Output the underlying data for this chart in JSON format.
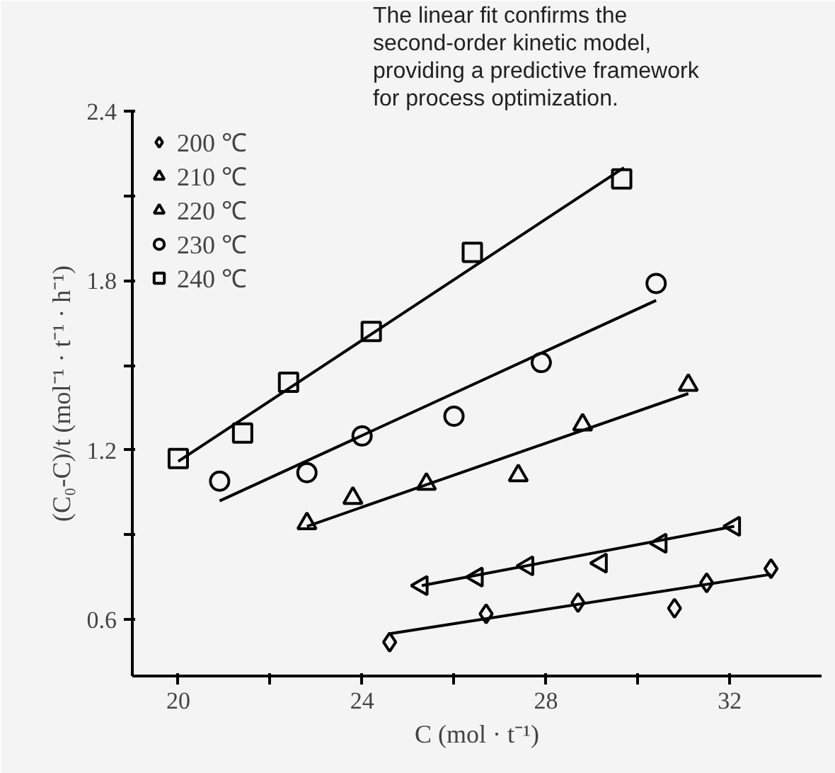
{
  "chart_data": {
    "type": "scatter",
    "xlabel": "C (mol · t⁻¹)",
    "ylabel": "(C₀-C)/t (mol⁻¹ · t⁻¹ · h⁻¹)",
    "xlim": [
      19,
      34
    ],
    "ylim": [
      0.4,
      2.4
    ],
    "xticks": [
      20,
      {
        "value": 22,
        "label": null
      },
      24,
      {
        "value": 26,
        "label": null
      },
      28,
      {
        "value": 30,
        "label": null
      },
      32
    ],
    "yticks": [
      0.6,
      {
        "value": 0.9,
        "label": null
      },
      1.2,
      {
        "value": 1.5,
        "label": null
      },
      1.8,
      {
        "value": 2.1,
        "label": null
      },
      2.4
    ],
    "grid": false,
    "legend": "top left",
    "annotations": [
      "The linear fit confirms the second-order kinetic model, providing a predictive framework for process optimization."
    ],
    "series": [
      {
        "name": "200 ℃",
        "color": "#000000",
        "marker": "diamond",
        "x": [
          24.6,
          26.7,
          28.7,
          30.8,
          31.5,
          32.9
        ],
        "values": [
          0.52,
          0.62,
          0.66,
          0.64,
          0.73,
          0.78
        ]
      },
      {
        "name": "210 ℃",
        "color": "#000000",
        "marker": "triangle-left",
        "x": [
          25.3,
          26.5,
          27.6,
          29.2,
          30.5,
          32.1
        ],
        "values": [
          0.72,
          0.75,
          0.79,
          0.8,
          0.87,
          0.93
        ]
      },
      {
        "name": "220 ℃",
        "color": "#000000",
        "marker": "triangle",
        "x": [
          22.8,
          23.8,
          25.4,
          27.4,
          28.8,
          31.1
        ],
        "values": [
          0.94,
          1.03,
          1.08,
          1.11,
          1.29,
          1.43
        ]
      },
      {
        "name": "230 ℃",
        "color": "#000000",
        "marker": "circle",
        "x": [
          20.9,
          22.8,
          24.0,
          26.0,
          27.9,
          30.4
        ],
        "values": [
          1.09,
          1.12,
          1.25,
          1.32,
          1.51,
          1.79
        ]
      },
      {
        "name": "240 ℃",
        "color": "#000000",
        "marker": "square",
        "x": [
          20.0,
          21.4,
          22.4,
          24.2,
          26.4,
          29.65
        ],
        "values": [
          1.17,
          1.26,
          1.44,
          1.62,
          1.9,
          2.16
        ]
      },
      {
        "type": "line",
        "color": "#000000",
        "x": [
          24.6,
          32.9
        ],
        "values": [
          0.55,
          0.76
        ]
      },
      {
        "type": "line",
        "color": "#000000",
        "x": [
          25.3,
          32.1
        ],
        "values": [
          0.72,
          0.93
        ]
      },
      {
        "type": "line",
        "color": "#000000",
        "x": [
          22.8,
          31.1
        ],
        "values": [
          0.93,
          1.4
        ]
      },
      {
        "type": "line",
        "color": "#000000",
        "x": [
          20.9,
          30.4
        ],
        "values": [
          1.02,
          1.73
        ]
      },
      {
        "type": "line",
        "color": "#000000",
        "x": [
          20.0,
          29.7
        ],
        "values": [
          1.16,
          2.2
        ]
      }
    ]
  }
}
